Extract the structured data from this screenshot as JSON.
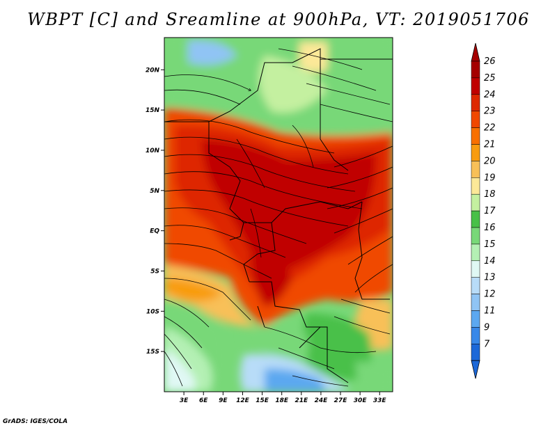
{
  "title": "WBPT [C] and Sreamline at 900hPa, VT: 2019051706",
  "credit": "GrADS: IGES/COLA",
  "map": {
    "variable": "Wet-bulb potential temperature (WBPT)",
    "units": "C",
    "level": "900hPa",
    "valid_time": "2019051706",
    "lat_range": [
      -20,
      24
    ],
    "lon_range": [
      0,
      35
    ],
    "lat_ticks": [
      {
        "value": 20,
        "label": "20N"
      },
      {
        "value": 15,
        "label": "15N"
      },
      {
        "value": 10,
        "label": "10N"
      },
      {
        "value": 5,
        "label": "5N"
      },
      {
        "value": 0,
        "label": "EQ"
      },
      {
        "value": -5,
        "label": "5S"
      },
      {
        "value": -10,
        "label": "10S"
      },
      {
        "value": -15,
        "label": "15S"
      }
    ],
    "lon_ticks": [
      {
        "value": 3,
        "label": "3E"
      },
      {
        "value": 6,
        "label": "6E"
      },
      {
        "value": 9,
        "label": "9E"
      },
      {
        "value": 12,
        "label": "12E"
      },
      {
        "value": 15,
        "label": "15E"
      },
      {
        "value": 18,
        "label": "18E"
      },
      {
        "value": 21,
        "label": "21E"
      },
      {
        "value": 24,
        "label": "24E"
      },
      {
        "value": 27,
        "label": "27E"
      },
      {
        "value": 30,
        "label": "30E"
      },
      {
        "value": 33,
        "label": "33E"
      }
    ]
  },
  "colorbar": {
    "levels": [
      {
        "label": "26",
        "color": "#a50000"
      },
      {
        "label": "25",
        "color": "#c00000"
      },
      {
        "label": "24",
        "color": "#de2800"
      },
      {
        "label": "23",
        "color": "#f04800"
      },
      {
        "label": "22",
        "color": "#f87000"
      },
      {
        "label": "21",
        "color": "#f89c10"
      },
      {
        "label": "20",
        "color": "#f8c058"
      },
      {
        "label": "19",
        "color": "#fce898"
      },
      {
        "label": "18",
        "color": "#c4f0a0"
      },
      {
        "label": "17",
        "color": "#48c048"
      },
      {
        "label": "16",
        "color": "#78d878"
      },
      {
        "label": "15",
        "color": "#b4f0b4"
      },
      {
        "label": "14",
        "color": "#e0f8f4"
      },
      {
        "label": "13",
        "color": "#b8dcf8"
      },
      {
        "label": "12",
        "color": "#90c4f4"
      },
      {
        "label": "11",
        "color": "#5ca8f0"
      },
      {
        "label": "9",
        "color": "#3888e8"
      },
      {
        "label": "7",
        "color": "#1c68d8"
      }
    ],
    "bottom_color": "#1c68d8"
  }
}
